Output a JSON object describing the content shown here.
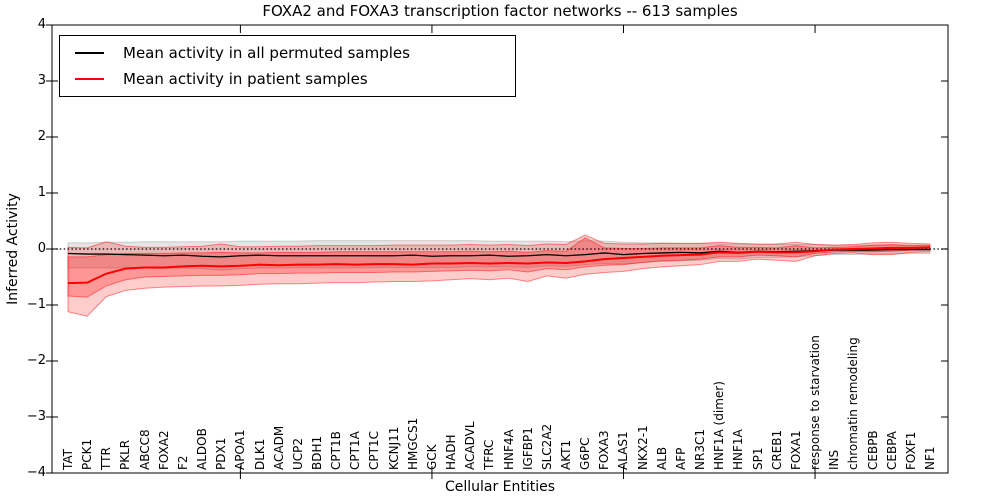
{
  "figure": {
    "title": "FOXA2 and FOXA3 transcription factor networks -- 613 samples",
    "xlabel": "Cellular Entities",
    "ylabel": "Inferred Activity"
  },
  "legend": {
    "entries": [
      {
        "label": "Mean activity in all permuted samples",
        "color": "#000000"
      },
      {
        "label": "Mean activity in patient samples",
        "color": "#ff0000"
      }
    ]
  },
  "chart_data": {
    "type": "line",
    "title": "FOXA2 and FOXA3 transcription factor networks -- 613 samples",
    "xlabel": "Cellular Entities",
    "ylabel": "Inferred Activity",
    "ylim": [
      -4,
      4
    ],
    "yticks": [
      -4,
      -3,
      -2,
      -1,
      0,
      1,
      2,
      3,
      4
    ],
    "xticks_major_at": [
      9,
      19,
      29,
      39
    ],
    "grid": false,
    "legend_position": "upper left",
    "zero_line": {
      "y": 0,
      "style": "dotted",
      "color": "#000000"
    },
    "categories": [
      "TAT",
      "PCK1",
      "TTR",
      "PKLR",
      "ABCC8",
      "FOXA2",
      "F2",
      "ALDOB",
      "PDX1",
      "APOA1",
      "DLK1",
      "ACADM",
      "UCP2",
      "BDH1",
      "CPT1B",
      "CPT1A",
      "CPT1C",
      "KCNJ11",
      "HMGCS1",
      "GCK",
      "HADH",
      "ACADVL",
      "TFRC",
      "HNF4A",
      "IGFBP1",
      "SLC2A2",
      "AKT1",
      "G6PC",
      "FOXA3",
      "ALAS1",
      "NKX2-1",
      "ALB",
      "AFP",
      "NR3C1",
      "HNF1A (dimer)",
      "HNF1A",
      "SP1",
      "CREB1",
      "FOXA1",
      "response to starvation",
      "INS",
      "chromatin remodeling",
      "CEBPB",
      "CEBPA",
      "FOXF1",
      "NF1"
    ],
    "series": [
      {
        "name": "Mean activity in all permuted samples",
        "color": "#000000",
        "line_width": 1.3,
        "band_color": "rgba(0,0,0,0.10)",
        "band_edge": "rgba(0,0,0,0.16)",
        "values": [
          -0.08,
          -0.09,
          -0.09,
          -0.1,
          -0.11,
          -0.12,
          -0.11,
          -0.13,
          -0.14,
          -0.12,
          -0.11,
          -0.12,
          -0.12,
          -0.12,
          -0.12,
          -0.12,
          -0.12,
          -0.12,
          -0.11,
          -0.13,
          -0.12,
          -0.12,
          -0.11,
          -0.13,
          -0.12,
          -0.1,
          -0.12,
          -0.1,
          -0.07,
          -0.1,
          -0.08,
          -0.07,
          -0.06,
          -0.07,
          -0.04,
          -0.06,
          -0.04,
          -0.05,
          -0.04,
          -0.03,
          -0.02,
          -0.02,
          -0.02,
          -0.01,
          -0.01,
          -0.01
        ],
        "band_hi": [
          0.11,
          0.11,
          0.12,
          0.12,
          0.13,
          0.13,
          0.13,
          0.13,
          0.13,
          0.14,
          0.14,
          0.14,
          0.14,
          0.15,
          0.15,
          0.15,
          0.15,
          0.15,
          0.15,
          0.15,
          0.15,
          0.15,
          0.14,
          0.14,
          0.14,
          0.14,
          0.13,
          0.15,
          0.14,
          0.12,
          0.11,
          0.11,
          0.1,
          0.1,
          0.09,
          0.09,
          0.08,
          0.08,
          0.08,
          0.08,
          0.07,
          0.07,
          0.07,
          0.07,
          0.07,
          0.07
        ],
        "band_lo": [
          -0.34,
          -0.34,
          -0.34,
          -0.33,
          -0.34,
          -0.35,
          -0.34,
          -0.35,
          -0.38,
          -0.35,
          -0.34,
          -0.34,
          -0.34,
          -0.34,
          -0.34,
          -0.34,
          -0.33,
          -0.33,
          -0.33,
          -0.33,
          -0.33,
          -0.32,
          -0.32,
          -0.32,
          -0.33,
          -0.3,
          -0.31,
          -0.28,
          -0.26,
          -0.27,
          -0.24,
          -0.22,
          -0.21,
          -0.2,
          -0.17,
          -0.18,
          -0.15,
          -0.15,
          -0.14,
          -0.12,
          -0.1,
          -0.1,
          -0.09,
          -0.09,
          -0.08,
          -0.08
        ]
      },
      {
        "name": "Mean activity in patient samples",
        "color": "#ff0000",
        "line_width": 2,
        "band_color": "rgba(255,0,0,0.20)",
        "band_edge": "rgba(255,0,0,0.45)",
        "inner_band_color": "rgba(255,0,0,0.26)",
        "values": [
          -0.61,
          -0.6,
          -0.44,
          -0.35,
          -0.33,
          -0.33,
          -0.31,
          -0.3,
          -0.31,
          -0.3,
          -0.28,
          -0.29,
          -0.28,
          -0.28,
          -0.27,
          -0.28,
          -0.27,
          -0.27,
          -0.28,
          -0.26,
          -0.26,
          -0.25,
          -0.26,
          -0.25,
          -0.26,
          -0.24,
          -0.25,
          -0.22,
          -0.18,
          -0.16,
          -0.14,
          -0.12,
          -0.11,
          -0.1,
          -0.06,
          -0.07,
          -0.05,
          -0.06,
          -0.06,
          -0.04,
          -0.01,
          0.0,
          0.01,
          0.02,
          0.02,
          0.03
        ],
        "band_hi": [
          0.03,
          0.02,
          0.13,
          0.05,
          0.03,
          0.03,
          0.04,
          0.05,
          0.09,
          0.04,
          0.04,
          0.05,
          0.05,
          0.06,
          0.06,
          0.06,
          0.06,
          0.07,
          0.07,
          0.07,
          0.07,
          0.08,
          0.07,
          0.08,
          0.06,
          0.09,
          0.08,
          0.25,
          0.1,
          0.09,
          0.09,
          0.1,
          0.1,
          0.1,
          0.12,
          0.1,
          0.09,
          0.09,
          0.12,
          0.08,
          0.07,
          0.08,
          0.11,
          0.12,
          0.1,
          0.09
        ],
        "band_lo": [
          -1.12,
          -1.2,
          -0.85,
          -0.74,
          -0.7,
          -0.68,
          -0.67,
          -0.66,
          -0.66,
          -0.65,
          -0.63,
          -0.62,
          -0.62,
          -0.61,
          -0.6,
          -0.6,
          -0.59,
          -0.58,
          -0.58,
          -0.57,
          -0.55,
          -0.53,
          -0.55,
          -0.52,
          -0.58,
          -0.48,
          -0.52,
          -0.45,
          -0.42,
          -0.4,
          -0.35,
          -0.32,
          -0.3,
          -0.28,
          -0.22,
          -0.22,
          -0.18,
          -0.2,
          -0.22,
          -0.12,
          -0.08,
          -0.07,
          -0.1,
          -0.1,
          -0.06,
          -0.05
        ],
        "inner_hi": [
          -0.14,
          -0.14,
          -0.1,
          -0.08,
          -0.08,
          -0.08,
          -0.07,
          -0.07,
          -0.06,
          -0.07,
          -0.07,
          -0.06,
          -0.06,
          -0.06,
          -0.05,
          -0.05,
          -0.05,
          -0.05,
          -0.05,
          -0.05,
          -0.05,
          -0.04,
          -0.05,
          -0.04,
          -0.06,
          -0.03,
          -0.04,
          0.2,
          0.02,
          0.01,
          0.01,
          0.02,
          0.02,
          0.02,
          0.06,
          0.03,
          0.03,
          0.02,
          0.06,
          0.02,
          0.03,
          0.04,
          0.07,
          0.08,
          0.06,
          0.06
        ],
        "inner_lo": [
          -0.84,
          -0.86,
          -0.66,
          -0.55,
          -0.5,
          -0.49,
          -0.48,
          -0.47,
          -0.47,
          -0.46,
          -0.44,
          -0.44,
          -0.43,
          -0.43,
          -0.42,
          -0.42,
          -0.42,
          -0.41,
          -0.41,
          -0.4,
          -0.39,
          -0.38,
          -0.39,
          -0.37,
          -0.41,
          -0.35,
          -0.37,
          -0.32,
          -0.29,
          -0.28,
          -0.24,
          -0.21,
          -0.2,
          -0.18,
          -0.14,
          -0.14,
          -0.11,
          -0.12,
          -0.14,
          -0.08,
          -0.05,
          -0.04,
          -0.05,
          -0.04,
          -0.02,
          -0.01
        ]
      }
    ]
  }
}
